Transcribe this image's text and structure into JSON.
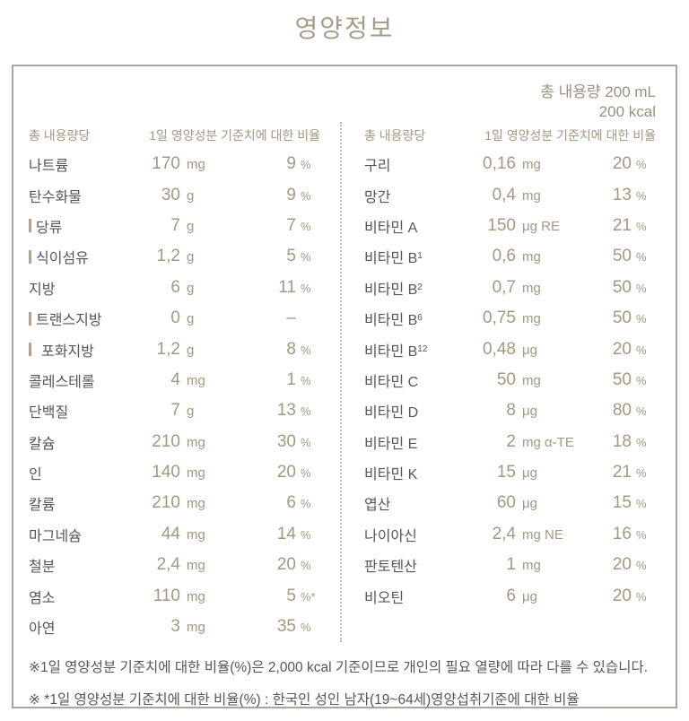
{
  "title": "영양정보",
  "total": {
    "volume": "총 내용량 200 mL",
    "energy": "200 kcal"
  },
  "table": {
    "left": {
      "header_amount": "총 내용량당",
      "header_pct": "1일 영양성분 기준치에 대한 비율",
      "rows": [
        {
          "label": "나트륨",
          "label_sub": "",
          "amount": "170",
          "unit": "mg",
          "pct": "9",
          "pct_sign": "%",
          "sub": false
        },
        {
          "label": "탄수화물",
          "label_sub": "",
          "amount": "30",
          "unit": "g",
          "pct": "9",
          "pct_sign": "%",
          "sub": false
        },
        {
          "label": "당류",
          "label_sub": "",
          "amount": "7",
          "unit": "g",
          "pct": "7",
          "pct_sign": "%",
          "sub": true
        },
        {
          "label": "식이섬유",
          "label_sub": "",
          "amount": "1,2",
          "unit": "g",
          "pct": "5",
          "pct_sign": "%",
          "sub": true
        },
        {
          "label": "지방",
          "label_sub": "",
          "amount": "6",
          "unit": "g",
          "pct": "11",
          "pct_sign": "%",
          "sub": false
        },
        {
          "label": "트랜스지방",
          "label_sub": "",
          "amount": "0",
          "unit": "g",
          "pct": "–",
          "pct_sign": "",
          "sub": true
        },
        {
          "label": "포화지방",
          "label_sub": "",
          "amount": "1,2",
          "unit": "g",
          "pct": "8",
          "pct_sign": "%",
          "sub": "wide"
        },
        {
          "label": "콜레스테롤",
          "label_sub": "",
          "amount": "4",
          "unit": "mg",
          "pct": "1",
          "pct_sign": "%",
          "sub": false
        },
        {
          "label": "단백질",
          "label_sub": "",
          "amount": "7",
          "unit": "g",
          "pct": "13",
          "pct_sign": "%",
          "sub": false
        },
        {
          "label": "칼슘",
          "label_sub": "",
          "amount": "210",
          "unit": "mg",
          "pct": "30",
          "pct_sign": "%",
          "sub": false
        },
        {
          "label": "인",
          "label_sub": "",
          "amount": "140",
          "unit": "mg",
          "pct": "20",
          "pct_sign": "%",
          "sub": false
        },
        {
          "label": "칼륨",
          "label_sub": "",
          "amount": "210",
          "unit": "mg",
          "pct": "6",
          "pct_sign": "%",
          "sub": false
        },
        {
          "label": "마그네슘",
          "label_sub": "",
          "amount": "44",
          "unit": "mg",
          "pct": "14",
          "pct_sign": "%",
          "sub": false
        },
        {
          "label": "철분",
          "label_sub": "",
          "amount": "2,4",
          "unit": "mg",
          "pct": "20",
          "pct_sign": "%",
          "sub": false
        },
        {
          "label": "염소",
          "label_sub": "",
          "amount": "110",
          "unit": "mg",
          "pct": "5",
          "pct_sign": "%*",
          "sub": false
        },
        {
          "label": "아연",
          "label_sub": "",
          "amount": "3",
          "unit": "mg",
          "pct": "35",
          "pct_sign": "%",
          "sub": false
        }
      ]
    },
    "right": {
      "header_amount": "총 내용량당",
      "header_pct": "1일 영양성분 기준치에 대한 비율",
      "rows": [
        {
          "label": "구리",
          "label_sub": "",
          "amount": "0,16",
          "unit": "mg",
          "pct": "20",
          "pct_sign": "%",
          "sub": false
        },
        {
          "label": "망간",
          "label_sub": "",
          "amount": "0,4",
          "unit": "mg",
          "pct": "13",
          "pct_sign": "%",
          "sub": false
        },
        {
          "label": "비타민 A",
          "label_sub": "",
          "amount": "150",
          "unit": "μg RE",
          "pct": "21",
          "pct_sign": "%",
          "sub": false
        },
        {
          "label": "비타민 B",
          "label_sub": "1",
          "amount": "0,6",
          "unit": "mg",
          "pct": "50",
          "pct_sign": "%",
          "sub": false
        },
        {
          "label": "비타민 B",
          "label_sub": "2",
          "amount": "0,7",
          "unit": "mg",
          "pct": "50",
          "pct_sign": "%",
          "sub": false
        },
        {
          "label": "비타민 B",
          "label_sub": "6",
          "amount": "0,75",
          "unit": "mg",
          "pct": "50",
          "pct_sign": "%",
          "sub": false
        },
        {
          "label": "비타민 B",
          "label_sub": "12",
          "amount": "0,48",
          "unit": "μg",
          "pct": "20",
          "pct_sign": "%",
          "sub": false
        },
        {
          "label": "비타민 C",
          "label_sub": "",
          "amount": "50",
          "unit": "mg",
          "pct": "50",
          "pct_sign": "%",
          "sub": false
        },
        {
          "label": "비타민 D",
          "label_sub": "",
          "amount": "8",
          "unit": "μg",
          "pct": "80",
          "pct_sign": "%",
          "sub": false
        },
        {
          "label": "비타민 E",
          "label_sub": "",
          "amount": "2",
          "unit": "mg α-TE",
          "pct": "18",
          "pct_sign": "%",
          "sub": false
        },
        {
          "label": "비타민 K",
          "label_sub": "",
          "amount": "15",
          "unit": "μg",
          "pct": "21",
          "pct_sign": "%",
          "sub": false
        },
        {
          "label": "엽산",
          "label_sub": "",
          "amount": "60",
          "unit": "μg",
          "pct": "15",
          "pct_sign": "%",
          "sub": false
        },
        {
          "label": "나이아신",
          "label_sub": "",
          "amount": "2,4",
          "unit": "mg NE",
          "pct": "16",
          "pct_sign": "%",
          "sub": false
        },
        {
          "label": "판토텐산",
          "label_sub": "",
          "amount": "1",
          "unit": "mg",
          "pct": "20",
          "pct_sign": "%",
          "sub": false
        },
        {
          "label": "비오틴",
          "label_sub": "",
          "amount": "6",
          "unit": "μg",
          "pct": "20",
          "pct_sign": "%",
          "sub": false
        }
      ]
    }
  },
  "footnotes": {
    "line1": "※1일 영양성분 기준치에 대한 비율(%)은 2,000 kcal 기준이므로 개인의 필요 열량에 따라 다를 수 있습니다.",
    "line2": "※ *1일 영양성분 기준치에 대한 비율(%) : 한국인 성인 남자(19~64세)영양섭취기준에 대한 비율"
  },
  "colors": {
    "accent": "#a69880",
    "label_text": "#55565b",
    "border": "#a9a69e",
    "divider": "#c0b6a8",
    "sub_bar": "#b5a28e",
    "title": "#a89b89"
  }
}
